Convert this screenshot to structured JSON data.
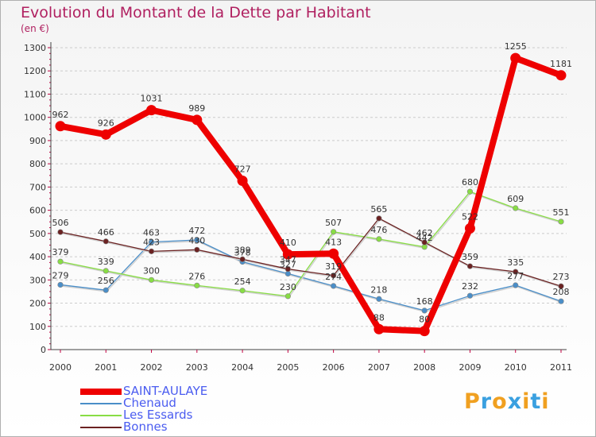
{
  "header": {
    "title": "Evolution du Montant de la Dette par Habitant",
    "subtitle": "(en €)"
  },
  "logo": {
    "text": "Proxiti",
    "letter_colors": [
      "#f0a020",
      "#3aa0e0",
      "#f0a020",
      "#3aa0e0",
      "#f0a020",
      "#3aa0e0",
      "#f0a020"
    ]
  },
  "chart_data": {
    "type": "line",
    "title": "Evolution du Montant de la Dette par Habitant",
    "subtitle": "(en €)",
    "xlabel": "",
    "ylabel": "",
    "x": [
      "2000",
      "2001",
      "2002",
      "2003",
      "2004",
      "2005",
      "2006",
      "2007",
      "2008",
      "2009",
      "2010",
      "2011"
    ],
    "ylim": [
      0,
      1300
    ],
    "yticks": [
      0,
      100,
      200,
      300,
      400,
      500,
      600,
      700,
      800,
      900,
      1000,
      1100,
      1200,
      1300
    ],
    "grid": "horizontal dashed",
    "legend_position": "bottom-left",
    "series": [
      {
        "name": "SAINT-AULAYE",
        "color": "#ee0000",
        "values": [
          962,
          926,
          1031,
          989,
          727,
          410,
          413,
          88,
          80,
          522,
          1255,
          1181
        ],
        "labels": [
          "962",
          "926",
          "1031",
          "989",
          "727",
          "410",
          "413",
          "88",
          "80",
          "522",
          "1255",
          "1181"
        ]
      },
      {
        "name": "Chenaud",
        "color": "#4a8ec8",
        "values": [
          279,
          256,
          463,
          472,
          378,
          327,
          274,
          218,
          168,
          232,
          277,
          208
        ],
        "labels": [
          "279",
          "256",
          "463",
          "472",
          "378",
          "327",
          "274",
          "218",
          "168",
          "232",
          "277",
          "208"
        ]
      },
      {
        "name": "Les Essards",
        "color": "#88dd44",
        "values": [
          379,
          339,
          300,
          276,
          254,
          230,
          507,
          476,
          442,
          680,
          609,
          551
        ],
        "labels": [
          "379",
          "339",
          "300",
          "276",
          "254",
          "230",
          "507",
          "476",
          "442",
          "680",
          "609",
          "551"
        ]
      },
      {
        "name": "Bonnes",
        "color": "#6b2222",
        "values": [
          506,
          466,
          423,
          430,
          389,
          347,
          319,
          565,
          462,
          359,
          335,
          273
        ],
        "labels": [
          "506",
          "466",
          "423",
          "430",
          "389",
          "347",
          "319",
          "565",
          "462",
          "359",
          "335",
          "273"
        ]
      }
    ]
  }
}
